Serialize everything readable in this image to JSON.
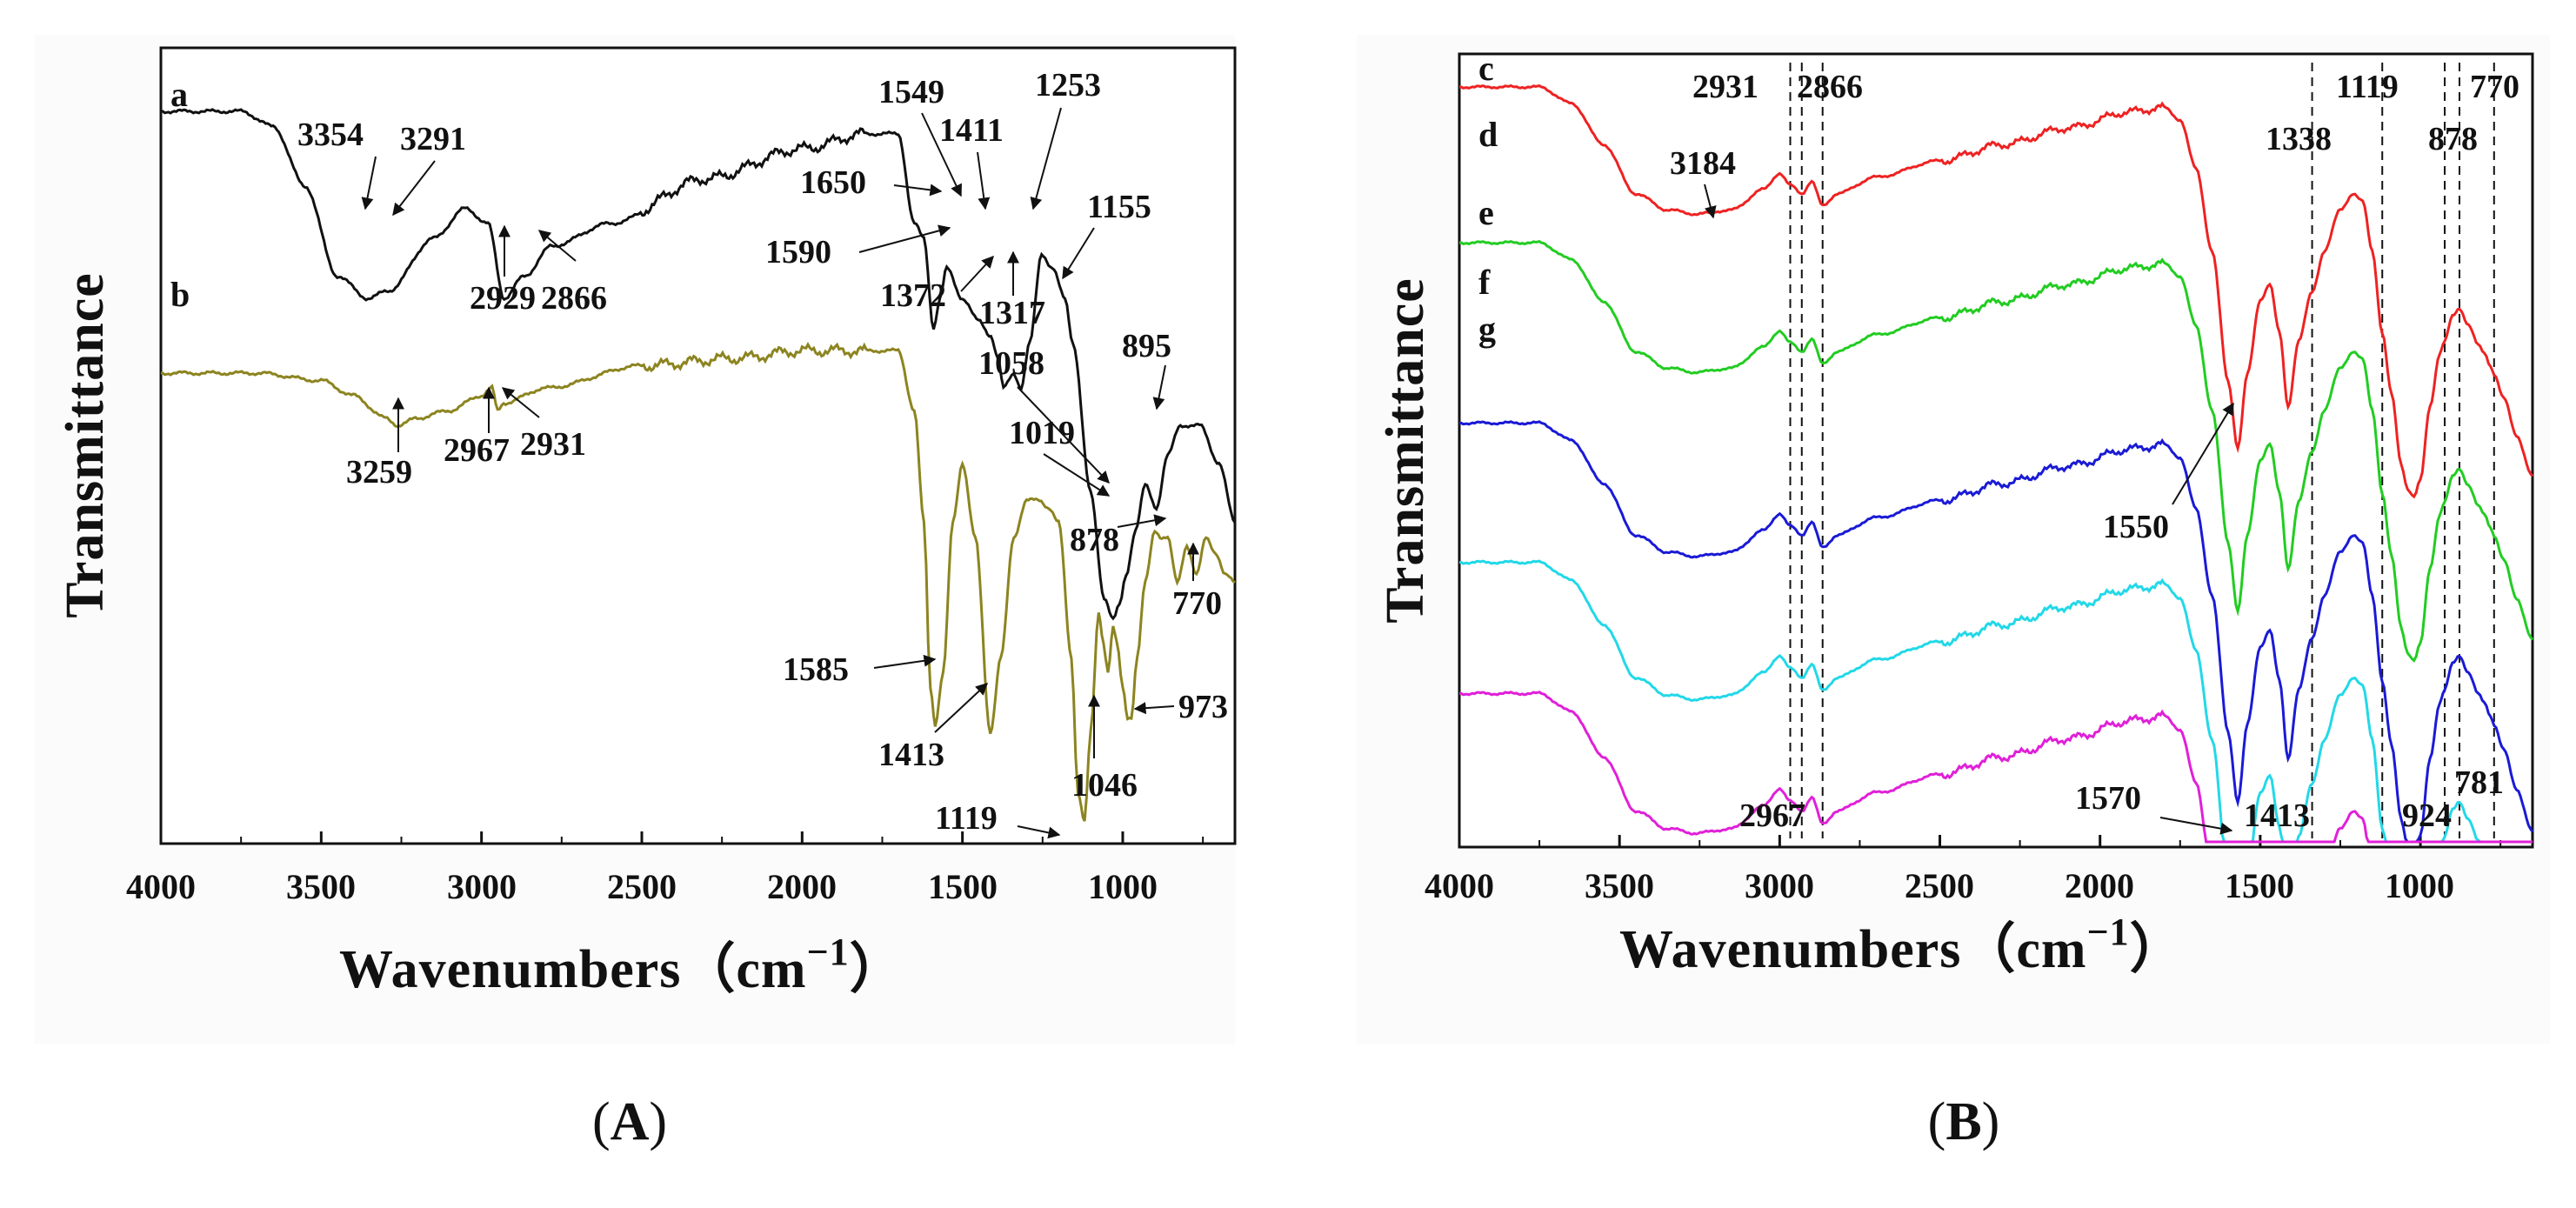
{
  "chart_data": [
    {
      "panel": "A",
      "panel_label_prefix": "(",
      "panel_label_suffix": ")",
      "type": "line",
      "xlabel": "Wavenumbers（cm",
      "xlabel_sup": "−1",
      "xlabel_close": "）",
      "ylabel": "Transmittance",
      "xlim": [
        4000,
        650
      ],
      "xticks": [
        4000,
        3500,
        3000,
        2500,
        2000,
        1500,
        1000
      ],
      "xtick_labels": [
        "4000",
        "3500",
        "3000",
        "2500",
        "2000",
        "1500",
        "1000"
      ],
      "colors": {
        "a": "#111111",
        "b": "#8c8420"
      },
      "series": [
        {
          "name": "a",
          "x": [
            4000,
            3750,
            3650,
            3550,
            3450,
            3354,
            3291,
            3150,
            3050,
            2980,
            2929,
            2866,
            2780,
            2600,
            2300,
            2000,
            1800,
            1700,
            1650,
            1620,
            1590,
            1570,
            1549,
            1500,
            1450,
            1411,
            1390,
            1372,
            1340,
            1317,
            1290,
            1253,
            1220,
            1180,
            1155,
            1100,
            1058,
            1030,
            1010,
            990,
            960,
            930,
            895,
            860,
            820,
            760,
            700,
            650
          ],
          "y": [
            5,
            5,
            7,
            15,
            27,
            30,
            29,
            22,
            18,
            20,
            30,
            27,
            23,
            20,
            14,
            10,
            8,
            8,
            20,
            22,
            34,
            30,
            26,
            30,
            33,
            35,
            38,
            42,
            40,
            42,
            36,
            24,
            26,
            30,
            36,
            56,
            70,
            73,
            71,
            67,
            61,
            55,
            58,
            51,
            47,
            47,
            52,
            60
          ]
        },
        {
          "name": "b",
          "x": [
            4000,
            3700,
            3500,
            3400,
            3300,
            3259,
            3200,
            3100,
            3000,
            2967,
            2950,
            2931,
            2800,
            2500,
            2200,
            2000,
            1800,
            1700,
            1650,
            1620,
            1600,
            1585,
            1560,
            1530,
            1500,
            1460,
            1413,
            1380,
            1340,
            1300,
            1260,
            1230,
            1200,
            1160,
            1140,
            1119,
            1100,
            1075,
            1060,
            1046,
            1030,
            1019,
            1000,
            985,
            973,
            955,
            930,
            900,
            878,
            860,
            830,
            800,
            770,
            740,
            710,
            680,
            650
          ],
          "y": [
            40,
            40,
            41,
            43,
            46,
            47,
            46,
            45,
            43,
            42,
            45,
            44,
            42,
            39,
            38,
            37,
            37,
            37,
            45,
            60,
            82,
            87,
            80,
            60,
            52,
            62,
            88,
            78,
            62,
            57,
            57,
            58,
            60,
            78,
            96,
            100,
            88,
            72,
            76,
            80,
            74,
            76,
            82,
            86,
            86,
            78,
            68,
            61,
            62,
            62,
            68,
            63,
            67,
            62,
            64,
            67,
            68
          ]
        }
      ],
      "curve_labels": [
        "a",
        "b"
      ],
      "annotations": [
        "3354",
        "3291",
        "2929",
        "2866",
        "1650",
        "1590",
        "1549",
        "1411",
        "1372",
        "1317",
        "1253",
        "1155",
        "895",
        "1058",
        "3259",
        "2967",
        "2931",
        "1019",
        "878",
        "770",
        "1585",
        "1413",
        "973",
        "1046",
        "1119"
      ]
    },
    {
      "panel": "B",
      "panel_label_prefix": "(",
      "panel_label_suffix": ")",
      "type": "line",
      "xlabel": "Wavenumbers（cm",
      "xlabel_sup": "−1",
      "xlabel_close": "）",
      "ylabel": "Transmittance",
      "xlim": [
        4000,
        650
      ],
      "xticks": [
        4000,
        3500,
        3000,
        2500,
        2000,
        1500,
        1000
      ],
      "xtick_labels": [
        "4000",
        "3500",
        "3000",
        "2500",
        "2000",
        "1500",
        "1000"
      ],
      "reference_lines": [
        2967,
        2931,
        2866,
        1338,
        1119,
        924,
        878,
        770
      ],
      "base_x": [
        4000,
        3750,
        3650,
        3550,
        3450,
        3350,
        3260,
        3150,
        3050,
        3000,
        2967,
        2931,
        2900,
        2866,
        2820,
        2700,
        2500,
        2300,
        2100,
        1900,
        1800,
        1750,
        1700,
        1650,
        1600,
        1570,
        1540,
        1500,
        1470,
        1440,
        1413,
        1380,
        1338,
        1300,
        1250,
        1210,
        1180,
        1150,
        1119,
        1090,
        1060,
        1040,
        1020,
        1000,
        970,
        940,
        924,
        900,
        878,
        850,
        820,
        800,
        781,
        770,
        740,
        700,
        650
      ],
      "series": [
        {
          "name": "c",
          "color": "#ee2222",
          "offset": 0,
          "scale": 1.0,
          "y": [
            0,
            0,
            4,
            14,
            26,
            30,
            31,
            30,
            25,
            21,
            24,
            26,
            23,
            29,
            26,
            22,
            18,
            14,
            10,
            6,
            5,
            8,
            20,
            40,
            72,
            88,
            70,
            52,
            48,
            60,
            78,
            62,
            50,
            40,
            30,
            26,
            28,
            40,
            60,
            75,
            92,
            98,
            100,
            96,
            78,
            65,
            62,
            56,
            54,
            58,
            63,
            65,
            68,
            70,
            76,
            85,
            95
          ]
        },
        {
          "name": "d",
          "color": "#22cc22",
          "offset": 38,
          "scale": 1.02,
          "y": [
            0,
            0,
            4,
            14,
            26,
            30,
            31,
            30,
            25,
            21,
            24,
            26,
            23,
            29,
            26,
            22,
            18,
            14,
            10,
            6,
            5,
            8,
            20,
            40,
            72,
            88,
            70,
            52,
            48,
            60,
            78,
            62,
            50,
            40,
            30,
            26,
            28,
            40,
            60,
            75,
            92,
            98,
            100,
            96,
            78,
            65,
            62,
            56,
            54,
            58,
            63,
            65,
            68,
            70,
            76,
            85,
            95
          ]
        },
        {
          "name": "e",
          "color": "#1a1ad6",
          "offset": 82,
          "scale": 1.05,
          "y": [
            0,
            0,
            4,
            14,
            26,
            30,
            31,
            30,
            25,
            21,
            24,
            26,
            23,
            29,
            26,
            22,
            18,
            14,
            10,
            6,
            5,
            8,
            20,
            40,
            72,
            88,
            70,
            52,
            48,
            60,
            78,
            62,
            50,
            40,
            30,
            26,
            28,
            40,
            60,
            75,
            92,
            98,
            100,
            96,
            78,
            65,
            62,
            56,
            54,
            58,
            63,
            65,
            68,
            70,
            76,
            85,
            95
          ]
        },
        {
          "name": "f",
          "color": "#22d8e8",
          "offset": 116,
          "scale": 1.08,
          "y": [
            0,
            0,
            4,
            14,
            26,
            30,
            31,
            30,
            25,
            21,
            24,
            26,
            23,
            29,
            26,
            22,
            18,
            14,
            10,
            6,
            5,
            8,
            20,
            40,
            72,
            88,
            70,
            52,
            48,
            60,
            78,
            62,
            50,
            40,
            30,
            26,
            28,
            40,
            60,
            75,
            92,
            98,
            100,
            96,
            78,
            65,
            62,
            56,
            54,
            58,
            63,
            65,
            68,
            70,
            76,
            85,
            95
          ]
        },
        {
          "name": "g",
          "color": "#e020d8",
          "offset": 148,
          "scale": 1.1,
          "y": [
            0,
            0,
            4,
            14,
            26,
            30,
            31,
            30,
            25,
            21,
            24,
            26,
            23,
            29,
            26,
            22,
            18,
            14,
            10,
            6,
            5,
            8,
            20,
            40,
            72,
            88,
            70,
            52,
            48,
            60,
            78,
            62,
            50,
            40,
            30,
            26,
            28,
            40,
            60,
            75,
            92,
            98,
            100,
            96,
            78,
            65,
            62,
            56,
            54,
            58,
            63,
            65,
            68,
            70,
            76,
            85,
            95
          ]
        }
      ],
      "curve_labels": [
        "c",
        "d",
        "e",
        "f",
        "g"
      ],
      "annotations": [
        "2931",
        "2866",
        "3184",
        "1119",
        "770",
        "1338",
        "878",
        "1550",
        "2967",
        "1570",
        "1413",
        "924",
        "781"
      ]
    }
  ]
}
